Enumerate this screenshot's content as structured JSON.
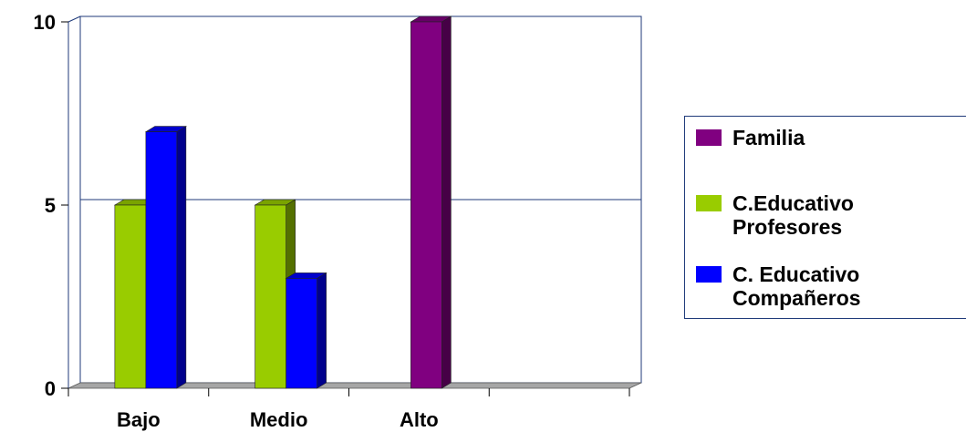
{
  "chart_data": {
    "type": "bar",
    "categories": [
      "Bajo",
      "Medio",
      "Alto",
      ""
    ],
    "series": [
      {
        "name": "Familia",
        "color": "#800080",
        "values": [
          0,
          0,
          10,
          0
        ]
      },
      {
        "name": "C.Educativo Profesores",
        "color": "#99cc00",
        "values": [
          5,
          5,
          0,
          0
        ]
      },
      {
        "name": "C. Educativo Compañeros",
        "color": "#0000ff",
        "values": [
          7,
          3,
          0,
          0
        ]
      }
    ],
    "ylim": [
      0,
      10
    ],
    "yticks": [
      0,
      5,
      10
    ],
    "grid": true,
    "legend_position": "right",
    "title": "",
    "xlabel": "",
    "ylabel": ""
  },
  "legend": {
    "items": [
      {
        "label": "Familia",
        "color": "#800080"
      },
      {
        "label": "C.Educativo\nProfesores",
        "color": "#99cc00"
      },
      {
        "label": "C. Educativo\nCompañeros",
        "color": "#0000ff"
      }
    ]
  }
}
